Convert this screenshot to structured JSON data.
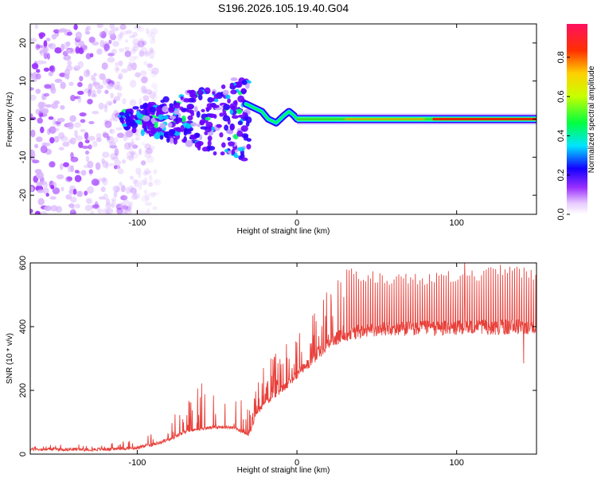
{
  "title": "S196.2026.105.19.40.G04",
  "chart_data": [
    {
      "type": "heatmap",
      "name": "spectrogram",
      "xlabel": "Height of straight line (km)",
      "ylabel": "Frequency (Hz)",
      "xlim": [
        -167,
        150
      ],
      "ylim": [
        -25,
        25
      ],
      "xticks": [
        -100,
        0,
        100
      ],
      "yticks": [
        -20,
        -10,
        0,
        10,
        20
      ],
      "colorbar": {
        "label": "Normalized spectral amplitude",
        "ticks": [
          0.0,
          0.2,
          0.4,
          0.6,
          0.8
        ],
        "range": [
          0,
          0.97
        ]
      },
      "features": {
        "noise_region_x": [
          -167,
          -95
        ],
        "clustered_scatter_x": [
          -110,
          -30
        ],
        "converging_branch_x": [
          -30,
          0
        ],
        "steady_line_x": [
          0,
          150
        ],
        "steady_line_frequency": 0,
        "peak_amplitude_region_x": [
          85,
          150
        ]
      }
    },
    {
      "type": "line",
      "name": "snr",
      "xlabel": "Height of straight line (km)",
      "ylabel": "SNR (10 * v/v)",
      "xlim": [
        -167,
        150
      ],
      "ylim": [
        0,
        600
      ],
      "xticks": [
        -100,
        0,
        100
      ],
      "yticks": [
        0,
        200,
        400,
        600
      ],
      "color": "#e8403a",
      "profile": {
        "x": [
          -167,
          -120,
          -100,
          -90,
          -80,
          -70,
          -60,
          -50,
          -40,
          -30,
          -25,
          -20,
          -10,
          0,
          10,
          20,
          30,
          40,
          50,
          60,
          70,
          80,
          90,
          100,
          110,
          120,
          130,
          140,
          150
        ],
        "baseline": [
          15,
          15,
          20,
          30,
          45,
          70,
          80,
          85,
          85,
          60,
          130,
          160,
          200,
          250,
          300,
          350,
          375,
          385,
          390,
          392,
          395,
          395,
          395,
          396,
          397,
          398,
          398,
          400,
          400
        ],
        "spike_peaks": [
          30,
          30,
          50,
          70,
          120,
          160,
          230,
          220,
          200,
          160,
          250,
          290,
          330,
          390,
          440,
          520,
          590,
          580,
          575,
          570,
          575,
          570,
          580,
          575,
          580,
          590,
          600,
          590,
          580
        ]
      },
      "notable_points": [
        {
          "x": 142,
          "y": 285,
          "note": "dip"
        },
        {
          "x": 105,
          "y": 600,
          "note": "max spike"
        }
      ]
    }
  ]
}
